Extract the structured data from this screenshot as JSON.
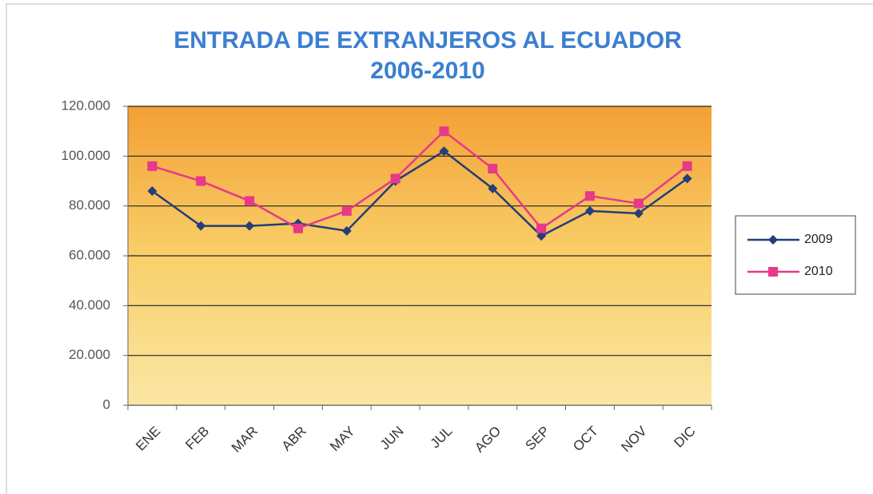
{
  "chart_data": {
    "type": "line",
    "title": "ENTRADA DE EXTRANJEROS AL ECUADOR",
    "subtitle": "2006-2010",
    "categories": [
      "ENE",
      "FEB",
      "MAR",
      "ABR",
      "MAY",
      "JUN",
      "JUL",
      "AGO",
      "SEP",
      "OCT",
      "NOV",
      "DIC"
    ],
    "series": [
      {
        "name": "2009",
        "color": "#233e78",
        "marker": "diamond",
        "values": [
          86000,
          72000,
          72000,
          73000,
          70000,
          90000,
          102000,
          87000,
          68000,
          78000,
          77000,
          91000
        ]
      },
      {
        "name": "2010",
        "color": "#e8388a",
        "marker": "square",
        "values": [
          96000,
          90000,
          82000,
          71000,
          78000,
          91000,
          110000,
          95000,
          71000,
          84000,
          81000,
          96000
        ]
      }
    ],
    "ylim": [
      0,
      120000
    ],
    "yticks": [
      0,
      {
        "value": 20000,
        "label": "20.000"
      },
      {
        "value": 40000,
        "label": "40.000"
      },
      {
        "value": 60000,
        "label": "60.000"
      },
      {
        "value": 80000,
        "label": "80.000"
      },
      {
        "value": 100000,
        "label": "100.000"
      },
      {
        "value": 120000,
        "label": "120.000"
      }
    ],
    "grid": true,
    "legend": "right"
  }
}
